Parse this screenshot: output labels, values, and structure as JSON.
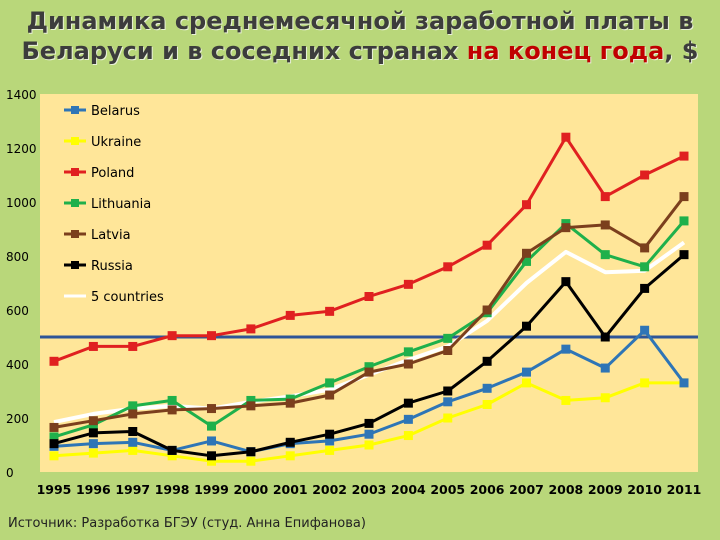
{
  "slide": {
    "title_line1": "Динамика среднемесячной заработной платы в",
    "title_line2_prefix": "Беларуси и в соседних странах ",
    "title_line2_highlight": "на конец года",
    "title_line2_suffix": ", $",
    "source": "Источник: Разработка БГЭУ (студ. Анна Епифанова)"
  },
  "chart_data": {
    "type": "line",
    "title": "",
    "xlabel": "",
    "ylabel": "",
    "x": [
      "1995",
      "1996",
      "1997",
      "1998",
      "1999",
      "2000",
      "2001",
      "2002",
      "2003",
      "2004",
      "2005",
      "2006",
      "2007",
      "2008",
      "2009",
      "2010",
      "2011"
    ],
    "ylim": [
      0,
      1400
    ],
    "yticks": [
      0,
      200,
      400,
      600,
      800,
      1000,
      1200,
      1400
    ],
    "grid": false,
    "legend_position": "top-left",
    "reference_line": {
      "y": 500,
      "color": "#2f5597"
    },
    "series": [
      {
        "name": "Belarus",
        "color": "#2e75b6",
        "marker": "square",
        "values": [
          95,
          105,
          110,
          80,
          115,
          75,
          105,
          115,
          140,
          195,
          260,
          310,
          370,
          455,
          385,
          525,
          330
        ]
      },
      {
        "name": "Ukraine",
        "color": "#ffff00",
        "marker": "square",
        "values": [
          60,
          70,
          80,
          60,
          40,
          40,
          60,
          80,
          100,
          135,
          200,
          250,
          330,
          265,
          275,
          330,
          330
        ]
      },
      {
        "name": "Poland",
        "color": "#e02020",
        "marker": "square",
        "values": [
          410,
          465,
          465,
          505,
          505,
          530,
          580,
          595,
          650,
          695,
          760,
          840,
          990,
          1240,
          1020,
          1100,
          1170
        ]
      },
      {
        "name": "Lithuania",
        "color": "#1fb04b",
        "marker": "square",
        "values": [
          130,
          175,
          245,
          265,
          170,
          265,
          270,
          330,
          390,
          445,
          495,
          590,
          780,
          920,
          805,
          760,
          930
        ]
      },
      {
        "name": "Latvia",
        "color": "#7b3f1d",
        "marker": "square",
        "values": [
          165,
          190,
          215,
          230,
          235,
          245,
          255,
          285,
          370,
          400,
          450,
          600,
          810,
          905,
          915,
          830,
          1020
        ]
      },
      {
        "name": "Russia",
        "color": "#000000",
        "marker": "square",
        "values": [
          105,
          145,
          150,
          80,
          60,
          75,
          110,
          140,
          180,
          255,
          300,
          410,
          540,
          705,
          500,
          680,
          805
        ]
      },
      {
        "name": "5 countries",
        "color": "#ffffff",
        "marker": "none",
        "values": [
          185,
          215,
          235,
          245,
          235,
          260,
          280,
          305,
          360,
          415,
          465,
          560,
          700,
          815,
          740,
          745,
          850
        ]
      }
    ]
  }
}
